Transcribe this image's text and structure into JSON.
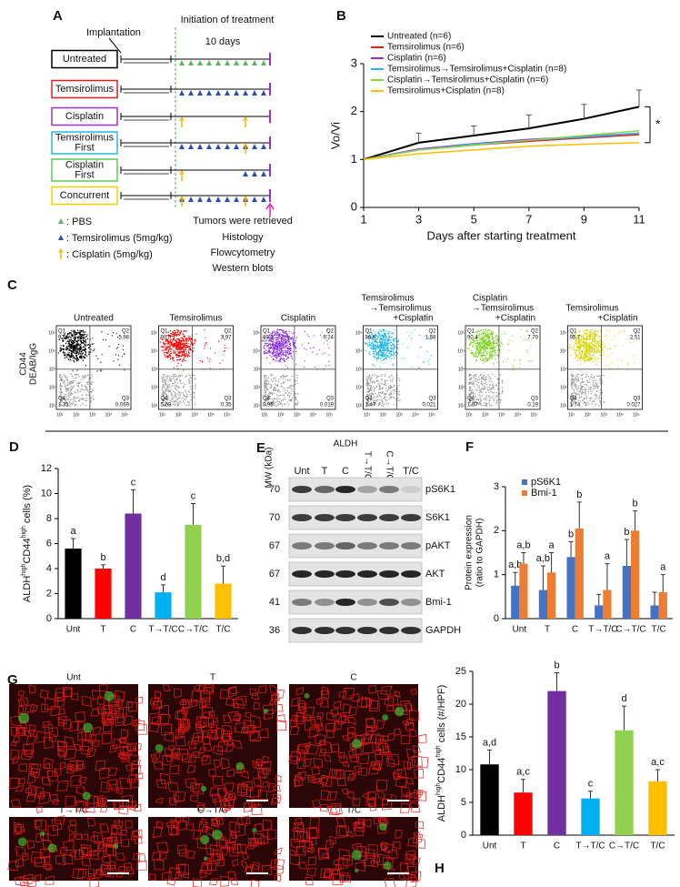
{
  "panel_a": {
    "panel_label": "A",
    "implantation": "Implantation",
    "initiation": "Initiation of treatment",
    "duration": "10 days",
    "groups": [
      {
        "lines": [
          "Untreated"
        ],
        "color": "#000000"
      },
      {
        "lines": [
          "Temsirolimus"
        ],
        "color": "#e02020"
      },
      {
        "lines": [
          "Cisplatin"
        ],
        "color": "#9b30d0"
      },
      {
        "lines": [
          "Temsirolimus",
          "First"
        ],
        "color": "#29b6e8"
      },
      {
        "lines": [
          "Cisplatin",
          "First"
        ],
        "color": "#5cc85c"
      },
      {
        "lines": [
          "Concurrent"
        ],
        "color": "#f0d000"
      }
    ],
    "legend": [
      ": PBS",
      ": Temsirolimus (5mg/kg)",
      ": Cisplatin (5mg/kg)"
    ],
    "retrieved": "Tumors were retrieved",
    "analyses": [
      "Histology",
      "Flowcytometry",
      "Western blots"
    ]
  },
  "chart_data": [
    {
      "type": "line",
      "panel_label": "B",
      "x": [
        1,
        3,
        5,
        7,
        9,
        11
      ],
      "xlim": [
        1,
        11
      ],
      "xticks": [
        1,
        3,
        5,
        7,
        9,
        11
      ],
      "ylim": [
        0,
        3
      ],
      "yticks": [
        0,
        1,
        2,
        3
      ],
      "xlabel": "Days after starting treatment",
      "ylabel": "Vo/Vi",
      "legend": "top-left",
      "annotation": "*",
      "series": [
        {
          "name": "Untreated (n=6)",
          "color": "#000000",
          "values": [
            1,
            1.35,
            1.5,
            1.65,
            1.85,
            2.1
          ],
          "errors": [
            null,
            0.2,
            0.2,
            0.28,
            0.3,
            0.35
          ]
        },
        {
          "name": "Temsirolimus (n=6)",
          "color": "#e02020",
          "values": [
            1,
            1.2,
            1.3,
            1.38,
            1.45,
            1.52
          ]
        },
        {
          "name": "Cisplatin (n=6)",
          "color": "#9b30d0",
          "values": [
            1,
            1.22,
            1.33,
            1.42,
            1.48,
            1.55
          ]
        },
        {
          "name": "Temsirolimus→Temsirolimus+Cisplatin (n=8)",
          "color": "#29b6e8",
          "values": [
            1,
            1.2,
            1.32,
            1.4,
            1.47,
            1.55
          ]
        },
        {
          "name": "Cisplatin→Temsirolimus+Cisplatin (n=6)",
          "color": "#8dd14b",
          "values": [
            1,
            1.2,
            1.3,
            1.4,
            1.5,
            1.6
          ]
        },
        {
          "name": "Temsirolimus+Cisplatin (n=8)",
          "color": "#ffc000",
          "values": [
            1,
            1.12,
            1.2,
            1.28,
            1.32,
            1.35
          ]
        }
      ]
    },
    {
      "type": "bar",
      "panel_label": "D",
      "categories": [
        "Unt",
        "T",
        "C",
        "T→T/C",
        "C→T/C",
        "T/C"
      ],
      "values": [
        5.6,
        4.0,
        8.4,
        2.1,
        7.5,
        2.8
      ],
      "errors": [
        0.8,
        0.3,
        1.9,
        0.6,
        1.7,
        1.4
      ],
      "colors": [
        "#000000",
        "#ff0000",
        "#7030a0",
        "#00b0f0",
        "#92d050",
        "#ffc000"
      ],
      "letters": [
        "a",
        "b",
        "c",
        "d",
        "c",
        "b,d"
      ],
      "ylim": [
        0,
        12
      ],
      "yticks": [
        0,
        2,
        4,
        6,
        8,
        10,
        12
      ],
      "ylabel_parts": [
        "ALDH",
        "high",
        "CD44",
        "high",
        " cells (%)"
      ]
    },
    {
      "type": "bar",
      "panel_label": "F",
      "categories": [
        "Unt",
        "T",
        "C",
        "T→T/C",
        "C→T/C",
        "T/C"
      ],
      "legend": "top-left",
      "series": [
        {
          "name": "pS6K1",
          "color": "#4472c4",
          "values": [
            0.75,
            0.65,
            1.4,
            0.3,
            1.2,
            0.3
          ],
          "errors": [
            0.3,
            0.55,
            0.35,
            0.25,
            0.6,
            0.3
          ],
          "letters": [
            "a,b",
            "a,b",
            "b",
            null,
            "b",
            null
          ]
        },
        {
          "name": "Bmi-1",
          "color": "#ed7d31",
          "values": [
            1.25,
            1.05,
            2.05,
            0.65,
            2.0,
            0.6
          ],
          "errors": [
            0.25,
            0.45,
            0.6,
            0.6,
            0.45,
            0.4
          ],
          "letters": [
            "a,b",
            "a",
            "b",
            "a",
            "b",
            "a"
          ]
        }
      ],
      "ylim": [
        0,
        3
      ],
      "yticks": [
        0,
        1,
        2,
        3
      ],
      "ylabel_lines": [
        "Protein expression",
        "(ratio to GAPDH)"
      ]
    },
    {
      "type": "bar",
      "panel_label": "H",
      "categories": [
        "Unt",
        "T",
        "C",
        "T→T/C",
        "C→T/C",
        "T/C"
      ],
      "values": [
        10.8,
        6.5,
        22,
        5.6,
        16,
        8.2
      ],
      "errors": [
        2.2,
        2,
        2.8,
        1.1,
        3.7,
        1.8
      ],
      "colors": [
        "#000000",
        "#ff0000",
        "#7030a0",
        "#00b0f0",
        "#92d050",
        "#ffc000"
      ],
      "letters": [
        "a,d",
        "a,c",
        "b",
        "c",
        "d",
        "a,c"
      ],
      "ylim": [
        0,
        25
      ],
      "yticks": [
        0,
        5,
        10,
        15,
        20,
        25
      ],
      "ylabel_parts": [
        "ALDH",
        "high",
        "CD44",
        "high",
        " cells (#/HPF)"
      ]
    }
  ],
  "panel_c": {
    "panel_label": "C",
    "y_label": [
      "CD44",
      "DEAB/IgG"
    ],
    "x_label": "ALDH",
    "ticks": [
      "10¹",
      "10²",
      "10³",
      "10⁴",
      "10⁵"
    ],
    "plots": [
      {
        "title": [
          "Untreated"
        ],
        "color": "#000000",
        "quadrants": [
          [
            "Q1",
            "92.6"
          ],
          [
            "Q2",
            "5.98"
          ],
          [
            "Q3",
            "0.069"
          ],
          [
            "Q4",
            "1.31"
          ]
        ]
      },
      {
        "title": [
          "Temsirolimus"
        ],
        "color": "#ff0000",
        "quadrants": [
          [
            "Q1",
            "90.0"
          ],
          [
            "Q2",
            "3.97"
          ],
          [
            "Q3",
            "0.35"
          ],
          [
            "Q4",
            "5.68"
          ]
        ]
      },
      {
        "title": [
          "Cisplatin"
        ],
        "color": "#8a2be2",
        "quadrants": [
          [
            "Q1",
            "89.8"
          ],
          [
            "Q2",
            "9.24"
          ],
          [
            "Q3",
            "0.019"
          ],
          [
            "Q4",
            "0.95"
          ]
        ]
      },
      {
        "title": [
          "Temsirolimus",
          "→Temsirolimus",
          "+Cisplatin"
        ],
        "color": "#29b6e8",
        "quadrants": [
          [
            "Q1",
            "96.9"
          ],
          [
            "Q2",
            "1.58"
          ],
          [
            "Q3",
            "0.021"
          ],
          [
            "Q4",
            "1.47"
          ]
        ]
      },
      {
        "title": [
          "Cisplatin",
          "→Temsirolimus",
          "+Cisplatin"
        ],
        "color": "#7ed321",
        "quadrants": [
          [
            "Q1",
            "90.4"
          ],
          [
            "Q2",
            "7.70"
          ],
          [
            "Q3",
            "0.19"
          ],
          [
            "Q4",
            "1.67"
          ]
        ]
      },
      {
        "title": [
          "Temsirolimus",
          "+Cisplatin"
        ],
        "color": "#d4d400",
        "quadrants": [
          [
            "Q1",
            "95.7"
          ],
          [
            "Q2",
            "2.51"
          ],
          [
            "Q3",
            "0.027"
          ],
          [
            "Q4",
            "1.74"
          ]
        ]
      }
    ]
  },
  "panel_e": {
    "panel_label": "E",
    "mw_label": "MW (kDa)",
    "lanes": [
      "Unt",
      "T",
      "C",
      "T→T/C",
      "C→T/C",
      "T/C"
    ],
    "rows": [
      {
        "mw": "70",
        "protein": "pS6K1"
      },
      {
        "mw": "70",
        "protein": "S6K1"
      },
      {
        "mw": "67",
        "protein": "pAKT"
      },
      {
        "mw": "67",
        "protein": "AKT"
      },
      {
        "mw": "41",
        "protein": "Bmi-1"
      },
      {
        "mw": "36",
        "protein": "GAPDH"
      }
    ]
  },
  "panel_g": {
    "panel_label": "G",
    "images": [
      "Unt",
      "T",
      "C",
      "T→T/C",
      "C→T/C",
      "T/C"
    ]
  }
}
